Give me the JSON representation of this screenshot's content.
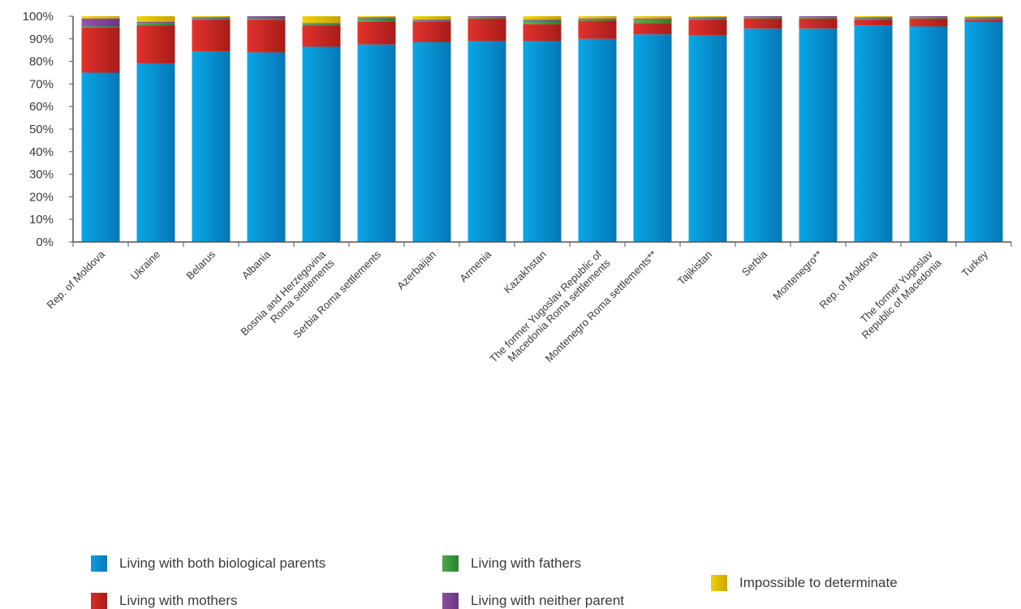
{
  "chart_data": {
    "type": "bar",
    "stacked": true,
    "title": "",
    "xlabel": "",
    "ylabel": "",
    "ylim": [
      0,
      100
    ],
    "yticks": [
      "0%",
      "10%",
      "20%",
      "30%",
      "40%",
      "50%",
      "60%",
      "70%",
      "80%",
      "90%",
      "100%"
    ],
    "grid": false,
    "legend_position": "bottom",
    "categories": [
      [
        "Rep. of Moldova"
      ],
      [
        "Ukraine"
      ],
      [
        "Belarus"
      ],
      [
        "Albania"
      ],
      [
        "Bosnia and Herzegovina",
        "Roma settlements"
      ],
      [
        "Serbia Roma settlements"
      ],
      [
        "Azerbaijan"
      ],
      [
        "Armenia"
      ],
      [
        "Kazakhstan"
      ],
      [
        "The former Yugoslav Republic of",
        "Macedonia Roma settlements"
      ],
      [
        "Montenegro Roma settlements**"
      ],
      [
        "Tajikistan"
      ],
      [
        "Serbia"
      ],
      [
        "Montenegro**"
      ],
      [
        "Rep. of Moldova"
      ],
      [
        "The former Yugoslav",
        "Republic of Macedonia"
      ],
      [
        "Turkey"
      ]
    ],
    "series": [
      {
        "name": "Living with both biological parents",
        "color": "#0a9fe0",
        "values": [
          75,
          79,
          84.5,
          84,
          86.5,
          87.5,
          88.5,
          89,
          89,
          90,
          92,
          91.5,
          94.5,
          94.5,
          96,
          95.5,
          97.5
        ]
      },
      {
        "name": "Living with mothers",
        "color": "#dc2c28",
        "values": [
          20,
          17,
          14,
          14.5,
          9.5,
          10,
          9,
          10,
          7.5,
          8,
          5,
          7,
          4.5,
          4.5,
          2.5,
          3.5,
          1
        ]
      },
      {
        "name": "Living with fathers",
        "color": "#4caa4c",
        "values": [
          0.5,
          1,
          0.5,
          0.5,
          0.5,
          1.5,
          0.5,
          0.5,
          1.5,
          0.5,
          1.5,
          0.5,
          0.5,
          0.5,
          0.5,
          0.5,
          0.5
        ]
      },
      {
        "name": "Living with neither parent",
        "color": "#8a4f9e",
        "values": [
          3.5,
          0.5,
          0.5,
          1,
          0.5,
          0.5,
          0.5,
          1,
          0.5,
          0.5,
          0.5,
          0.5,
          0.5,
          0.5,
          0.5,
          0.5,
          0.5
        ]
      },
      {
        "name": "Impossible to determinate",
        "color": "#e6c200",
        "values": [
          1,
          2.5,
          0.5,
          0,
          3,
          0.5,
          1.5,
          0,
          1.5,
          1,
          1,
          0.5,
          0,
          0,
          0.5,
          0,
          0.5
        ]
      }
    ]
  }
}
